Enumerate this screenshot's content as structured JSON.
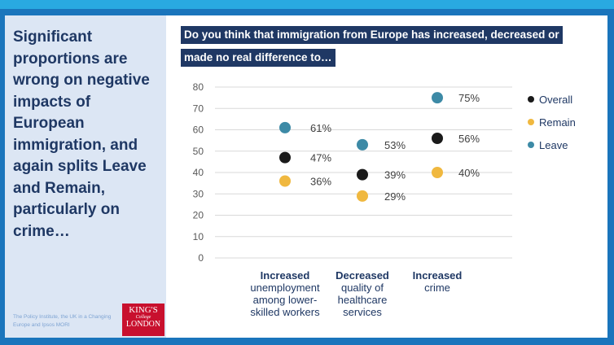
{
  "side_panel": {
    "heading": "Significant proportions are wrong on negative impacts of European immigration, and again splits Leave and Remain, particularly on crime…",
    "credit": "The Policy Institute, the UK in a Changing Europe and Ipsos MORI",
    "logo": {
      "line1": "KING'S",
      "line2": "College",
      "line3": "LONDON"
    }
  },
  "title": {
    "line1": "Do you think that immigration from Europe has increased, decreased or",
    "line2": "made no real difference to…"
  },
  "colors": {
    "overall": "#1a1a1a",
    "remain": "#f0b83f",
    "leave": "#3d8aa6"
  },
  "chart_data": {
    "type": "scatter",
    "title": "Do you think that immigration from Europe has increased, decreased or made no real difference to…",
    "ylim": [
      0,
      80
    ],
    "yticks": [
      0,
      10,
      20,
      30,
      40,
      50,
      60,
      70,
      80
    ],
    "grid": true,
    "legend_position": "right",
    "categories": [
      {
        "strong": "Increased",
        "rest": [
          "unemployment",
          "among lower-",
          "skilled workers"
        ]
      },
      {
        "strong": "Decreased",
        "rest": [
          "quality of",
          "healthcare",
          "services"
        ]
      },
      {
        "strong": "Increased",
        "rest": [
          "crime"
        ]
      }
    ],
    "series": [
      {
        "name": "Overall",
        "color": "#1a1a1a",
        "values": [
          47,
          39,
          56
        ],
        "labels": [
          "47%",
          "39%",
          "56%"
        ]
      },
      {
        "name": "Remain",
        "color": "#f0b83f",
        "values": [
          36,
          29,
          40
        ],
        "labels": [
          "36%",
          "29%",
          "40%"
        ]
      },
      {
        "name": "Leave",
        "color": "#3d8aa6",
        "values": [
          61,
          53,
          75
        ],
        "labels": [
          "61%",
          "53%",
          "75%"
        ]
      }
    ]
  }
}
